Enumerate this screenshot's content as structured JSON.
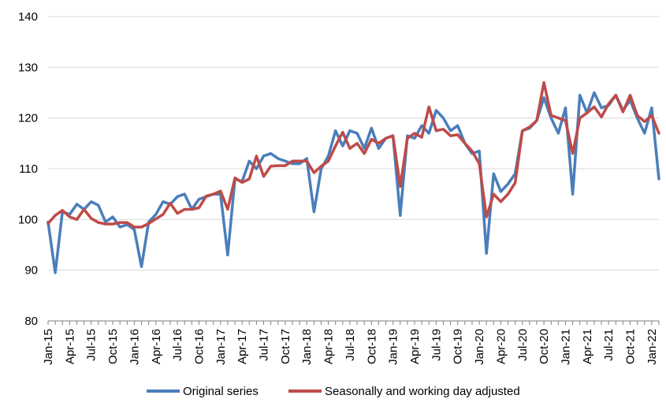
{
  "chart_data": {
    "type": "line",
    "title": "",
    "xlabel": "",
    "ylabel": "",
    "ylim": [
      80,
      140
    ],
    "yticks": [
      80,
      90,
      100,
      110,
      120,
      130,
      140
    ],
    "grid": "horizontal",
    "legend_position": "bottom",
    "x_tick_labels": [
      "Jan-15",
      "Apr-15",
      "Jul-15",
      "Oct-15",
      "Jan-16",
      "Apr-16",
      "Jul-16",
      "Oct-16",
      "Jan-17",
      "Apr-17",
      "Jul-17",
      "Oct-17",
      "Jan-18",
      "Apr-18",
      "Jul-18",
      "Oct-18",
      "Jan-19",
      "Apr-19",
      "Jul-19",
      "Oct-19",
      "Jan-20",
      "Apr-20",
      "Jul-20",
      "Oct-20",
      "Jan-21",
      "Apr-21",
      "Jul-21",
      "Oct-21",
      "Jan-22"
    ],
    "series": [
      {
        "name": "Original series",
        "color": "#4A7EBB",
        "values": [
          99.5,
          89.5,
          101.5,
          101,
          103,
          102,
          103.5,
          102.8,
          99.5,
          100.5,
          98.5,
          99,
          98,
          90.7,
          99.5,
          101,
          103.5,
          103,
          104.5,
          105,
          102,
          104,
          104.5,
          105,
          105,
          93,
          108,
          107.5,
          111.5,
          110,
          112.5,
          113,
          112,
          111.5,
          111,
          111,
          112,
          101.5,
          110,
          112.5,
          117.5,
          114.5,
          117.5,
          117,
          114,
          118,
          114,
          116,
          116.5,
          100.8,
          116.5,
          116,
          118.5,
          117,
          121.5,
          120,
          117.5,
          118.5,
          115,
          113,
          113.5,
          93.3,
          109,
          105.5,
          107,
          109,
          117.5,
          118,
          119.5,
          124,
          120,
          117,
          122,
          105,
          124.5,
          121,
          125,
          122,
          122.5,
          124.5,
          121.5,
          123.5,
          120,
          117,
          122,
          108
        ]
      },
      {
        "name": "Seasonally and working day adjusted",
        "color": "#BE4B48",
        "values": [
          99.2,
          100.8,
          101.8,
          100.5,
          100,
          102,
          100.2,
          99.4,
          99.1,
          99.1,
          99.4,
          99.4,
          98.5,
          98.5,
          99.2,
          100.1,
          101,
          103.2,
          101.2,
          102,
          102,
          102.3,
          104.6,
          105,
          105.6,
          102,
          108.2,
          107.3,
          108,
          112.5,
          108.5,
          110.5,
          110.6,
          110.6,
          111.5,
          111.5,
          111.5,
          109.2,
          110.5,
          111.5,
          114.5,
          117.2,
          114,
          115,
          113,
          115.8,
          115,
          116,
          116.5,
          106.5,
          116,
          117,
          116.2,
          122.2,
          117.5,
          117.8,
          116.5,
          116.7,
          115,
          113.5,
          111,
          100.5,
          105,
          103.5,
          105,
          107.2,
          117.5,
          118.2,
          119.5,
          127,
          120.5,
          120,
          119.5,
          113,
          120,
          121,
          122.2,
          120.2,
          122.8,
          124.5,
          121.2,
          124.5,
          120.5,
          119.3,
          120.5,
          117
        ]
      }
    ]
  }
}
